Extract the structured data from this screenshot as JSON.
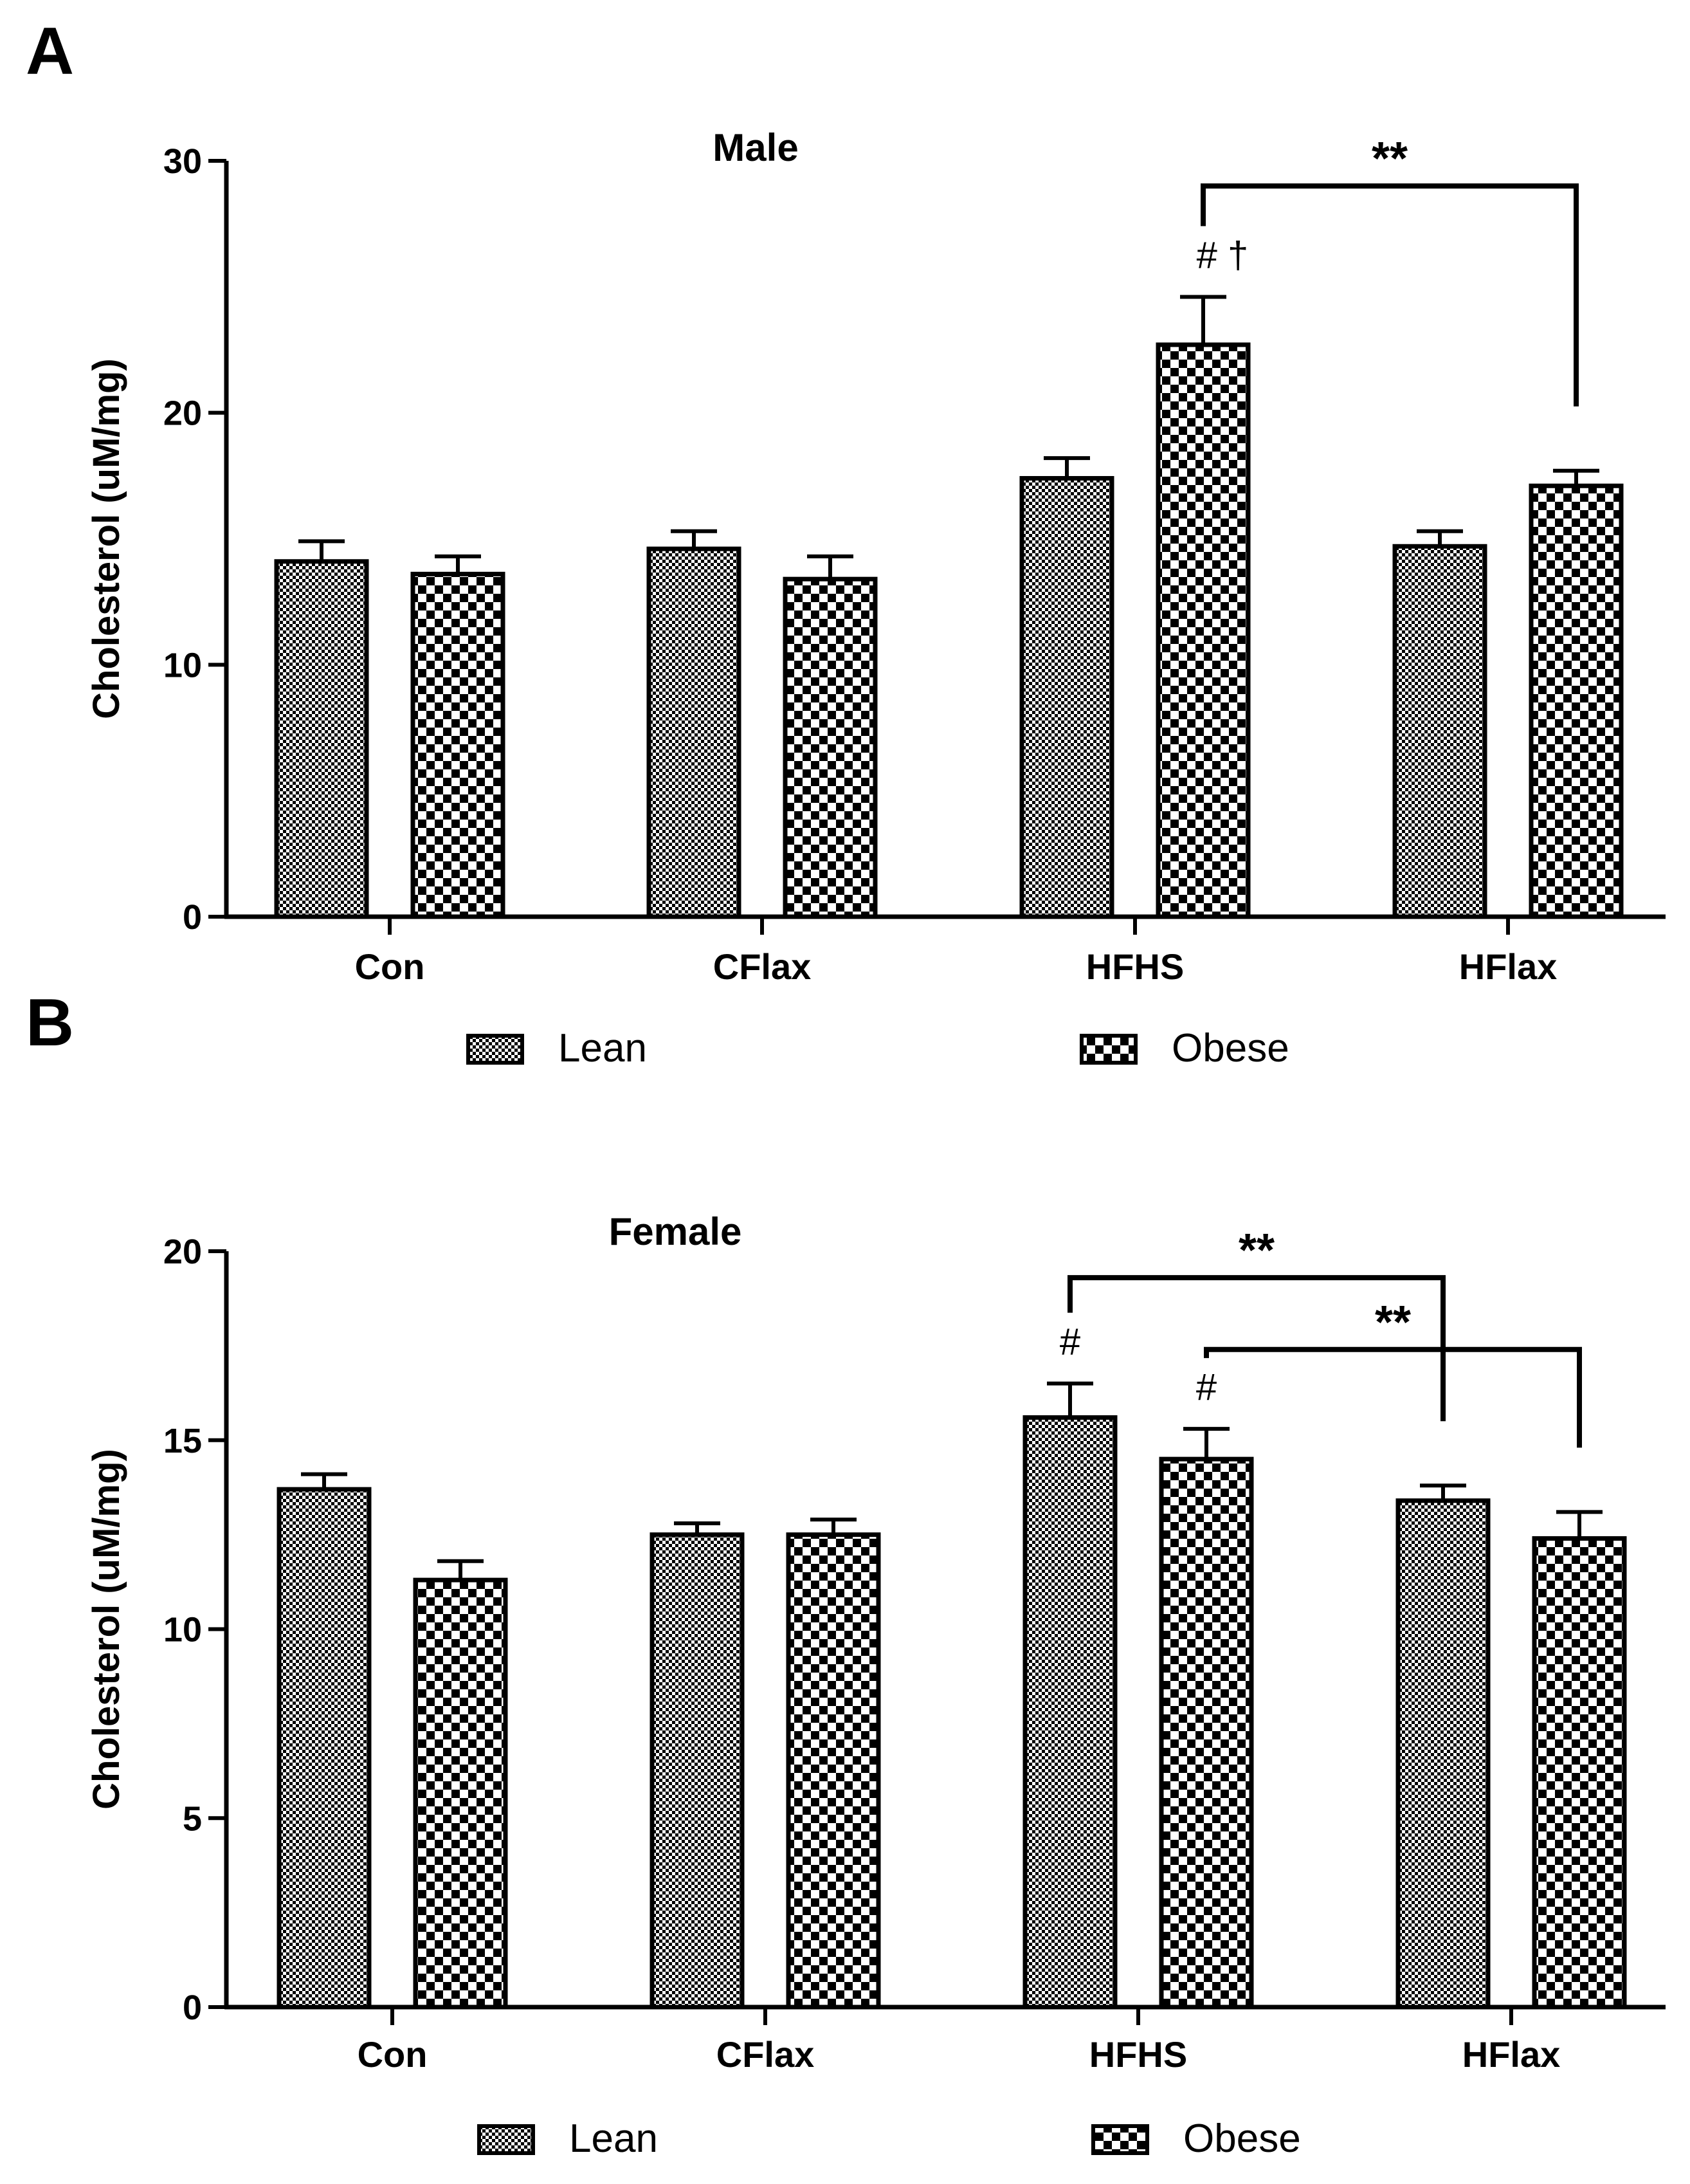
{
  "colors": {
    "ink": "#000000",
    "background": "#ffffff",
    "pattern_light": "#ffffff"
  },
  "chart_data": [
    {
      "panel_label": "A",
      "type": "bar",
      "title": "Male",
      "xlabel": "",
      "ylabel": "Cholesterol (uM/mg)",
      "ylim": [
        0,
        30
      ],
      "yticks": [
        0,
        10,
        20,
        30
      ],
      "categories": [
        "Con",
        "CFlax",
        "HFHS",
        "HFlax"
      ],
      "series": [
        {
          "name": "Lean",
          "pattern": "fine-check",
          "values": [
            14.1,
            14.6,
            17.4,
            14.7
          ],
          "errors": [
            0.8,
            0.7,
            0.8,
            0.6
          ]
        },
        {
          "name": "Obese",
          "pattern": "coarse-check",
          "values": [
            13.6,
            13.4,
            22.7,
            17.1
          ],
          "errors": [
            0.7,
            0.9,
            1.9,
            0.6
          ]
        }
      ],
      "annotations": [
        {
          "text": "# †",
          "category": 2,
          "series": 1
        }
      ],
      "significance": [
        {
          "text": "**",
          "from": {
            "category": 2,
            "series": 1
          },
          "to": {
            "category": 3,
            "series": 1
          },
          "y": 29.0,
          "level": 1
        }
      ],
      "legend": {
        "placement": "bottom",
        "entries": [
          "Lean",
          "Obese"
        ]
      }
    },
    {
      "panel_label": "B",
      "type": "bar",
      "title": "Female",
      "xlabel": "",
      "ylabel": "Cholesterol (uM/mg)",
      "ylim": [
        0,
        20
      ],
      "yticks": [
        0,
        5,
        10,
        15,
        20
      ],
      "categories": [
        "Con",
        "CFlax",
        "HFHS",
        "HFlax"
      ],
      "series": [
        {
          "name": "Lean",
          "pattern": "fine-check",
          "values": [
            13.7,
            12.5,
            15.6,
            13.4
          ],
          "errors": [
            0.4,
            0.3,
            0.9,
            0.4
          ]
        },
        {
          "name": "Obese",
          "pattern": "coarse-check",
          "values": [
            11.3,
            12.5,
            14.5,
            12.4
          ],
          "errors": [
            0.5,
            0.4,
            0.8,
            0.7
          ]
        }
      ],
      "annotations": [
        {
          "text": "#",
          "category": 2,
          "series": 0
        },
        {
          "text": "#",
          "category": 2,
          "series": 1
        }
      ],
      "significance": [
        {
          "text": "**",
          "from": {
            "category": 2,
            "series": 0
          },
          "to": {
            "category": 3,
            "series": 0
          },
          "y": 19.3,
          "level": 1
        },
        {
          "text": "**",
          "from": {
            "category": 2,
            "series": 1
          },
          "to": {
            "category": 3,
            "series": 1
          },
          "y": 17.4,
          "level": 2
        }
      ],
      "legend": {
        "placement": "bottom",
        "entries": [
          "Lean",
          "Obese"
        ]
      }
    }
  ]
}
